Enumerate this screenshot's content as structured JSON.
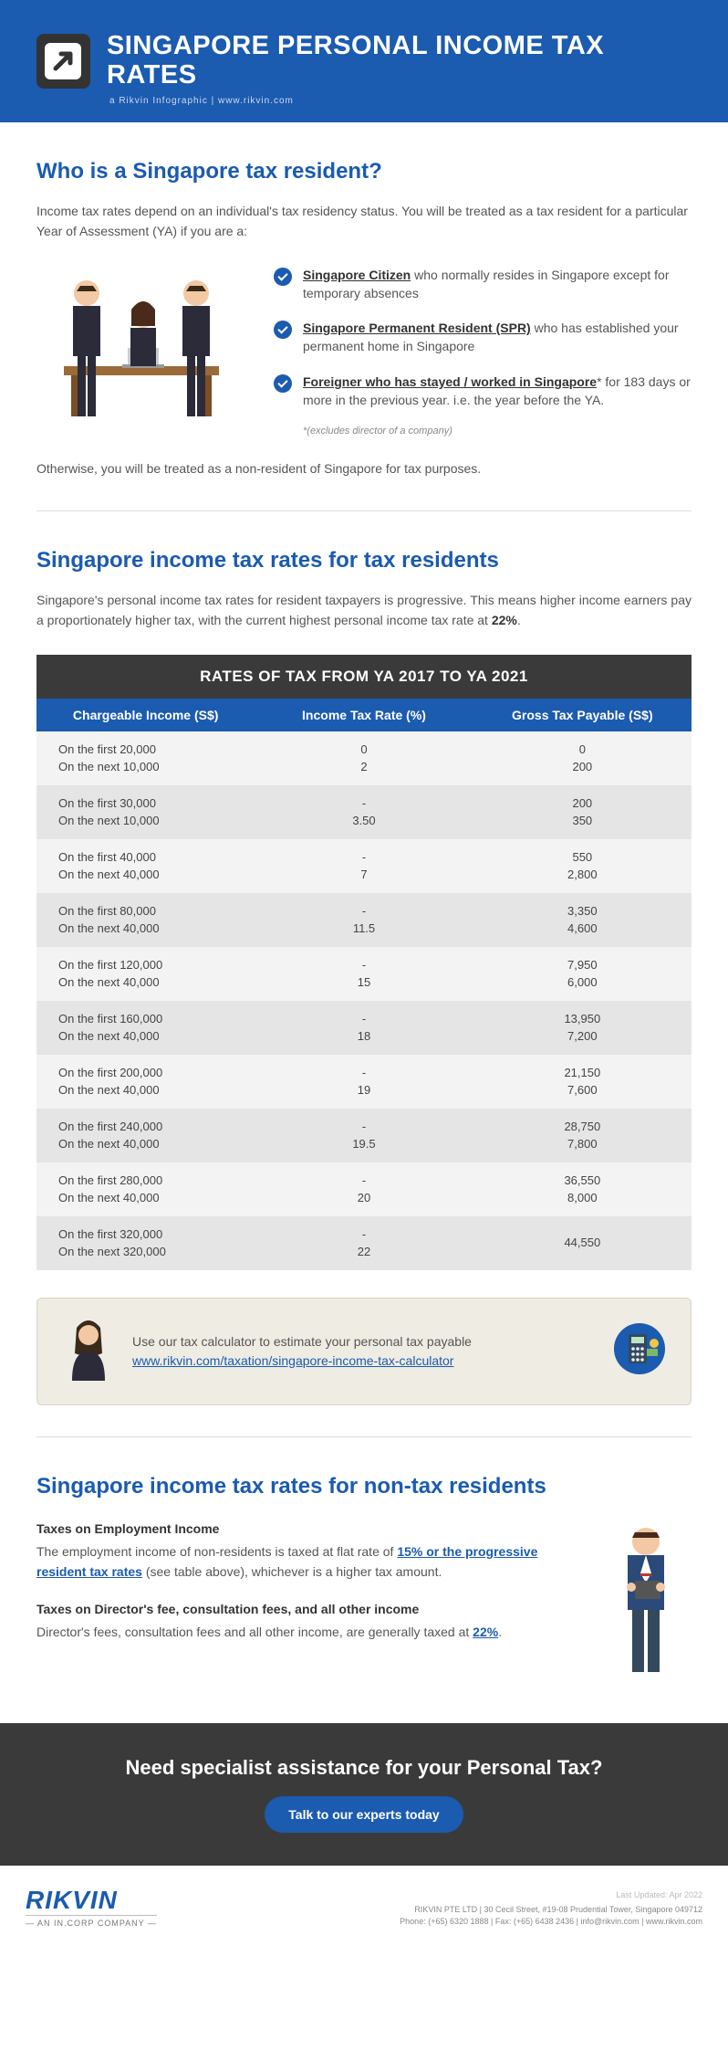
{
  "header": {
    "title": "SINGAPORE PERSONAL INCOME TAX RATES",
    "sub": "a Rikvin Infographic  |  www.rikvin.com"
  },
  "s1": {
    "heading": "Who is a Singapore tax resident?",
    "intro": "Income tax rates depend on an individual's tax residency status. You will be treated as a tax resident for a particular Year of Assessment (YA) if you are a:",
    "b1_strong": "Singapore Citizen",
    "b1_rest": " who normally resides in Singapore except for temporary absences",
    "b2_strong": "Singapore Permanent Resident (SPR)",
    "b2_rest": " who has established your permanent home in Singapore",
    "b3_strong": "Foreigner who has stayed / worked in Singapore",
    "b3_star": "*",
    "b3_rest": " for 183 days or more in the previous year. i.e. the year before the YA.",
    "b3_foot": "*(excludes director of a company)",
    "outro": "Otherwise, you will be treated as a non-resident of Singapore for tax purposes."
  },
  "s2": {
    "heading": "Singapore income tax rates for tax residents",
    "intro_a": "Singapore's personal income tax rates for resident taxpayers is progressive. This means higher income earners pay a proportionately higher tax, with the current highest personal income tax rate at ",
    "rate": "22%",
    "intro_b": "."
  },
  "table": {
    "title": "RATES OF TAX FROM YA 2017 TO YA 2021",
    "h1": "Chargeable Income (S$)",
    "h2": "Income Tax Rate (%)",
    "h3": "Gross Tax Payable (S$)",
    "rows": [
      {
        "c1a": "On the first 20,000",
        "c1b": "On the next 10,000",
        "c2a": "0",
        "c2b": "2",
        "c3a": "0",
        "c3b": "200"
      },
      {
        "c1a": "On the first 30,000",
        "c1b": "On the next 10,000",
        "c2a": "-",
        "c2b": "3.50",
        "c3a": "200",
        "c3b": "350"
      },
      {
        "c1a": "On the first 40,000",
        "c1b": "On the next 40,000",
        "c2a": "-",
        "c2b": "7",
        "c3a": "550",
        "c3b": "2,800"
      },
      {
        "c1a": "On the first 80,000",
        "c1b": "On the next 40,000",
        "c2a": "-",
        "c2b": "11.5",
        "c3a": "3,350",
        "c3b": "4,600"
      },
      {
        "c1a": "On the first 120,000",
        "c1b": "On the next 40,000",
        "c2a": "-",
        "c2b": "15",
        "c3a": "7,950",
        "c3b": "6,000"
      },
      {
        "c1a": "On the first 160,000",
        "c1b": "On the next 40,000",
        "c2a": "-",
        "c2b": "18",
        "c3a": "13,950",
        "c3b": "7,200"
      },
      {
        "c1a": "On the first 200,000",
        "c1b": "On the next 40,000",
        "c2a": "-",
        "c2b": "19",
        "c3a": "21,150",
        "c3b": "7,600"
      },
      {
        "c1a": "On the first 240,000",
        "c1b": "On the next 40,000",
        "c2a": "-",
        "c2b": "19.5",
        "c3a": "28,750",
        "c3b": "7,800"
      },
      {
        "c1a": "On the first 280,000",
        "c1b": "On the next 40,000",
        "c2a": "-",
        "c2b": "20",
        "c3a": "36,550",
        "c3b": "8,000"
      },
      {
        "c1a": "On the first 320,000",
        "c1b": "On the next 320,000",
        "c2a": "-",
        "c2b": "22",
        "c3a": "44,550",
        "c3b": ""
      }
    ]
  },
  "calc": {
    "text": "Use our tax calculator to estimate your personal tax payable",
    "link": "www.rikvin.com/taxation/singapore-income-tax-calculator"
  },
  "s3": {
    "heading": "Singapore income tax rates for non-tax residents",
    "h1": "Taxes on Employment Income",
    "p1a": "The employment income of non-residents is taxed at flat rate of ",
    "p1_link": "15% or the progressive resident tax rates",
    "p1b": " (see table above), whichever is a higher tax amount.",
    "h2": "Taxes on Director's fee, consultation fees, and all other income",
    "p2a": "Director's fees, consultation fees and all other income, are generally taxed at ",
    "p2_link": "22%",
    "p2b": "."
  },
  "cta": {
    "heading": "Need specialist assistance for your Personal Tax?",
    "button": "Talk to our experts today"
  },
  "footer": {
    "brand": "RIKVIN",
    "tag": "— AN IN.CORP COMPANY —",
    "updated": "Last Updated: Apr 2022",
    "addr": "RIKVIN PTE LTD | 30 Cecil Street, #19-08 Prudential Tower, Singapore 049712",
    "contact": "Phone: (+65) 6320 1888 | Fax: (+65) 6438 2436 | info@rikvin.com | www.rikvin.com"
  },
  "colors": {
    "brand_blue": "#1b5bb0",
    "dark": "#3a3a3a",
    "row_light": "#f3f3f3",
    "row_dark": "#e5e5e5",
    "calc_bg": "#efece3"
  }
}
